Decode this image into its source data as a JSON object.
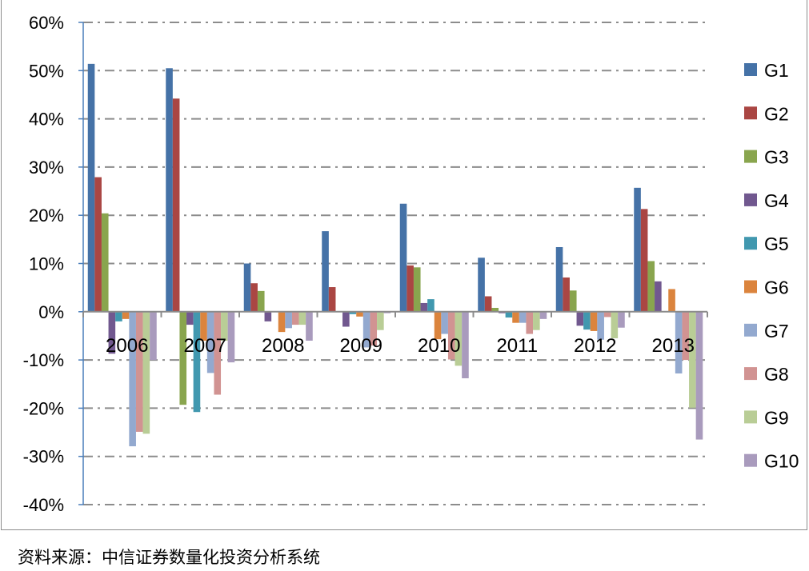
{
  "chart_data": {
    "type": "bar",
    "title": "",
    "xlabel": "",
    "ylabel": "",
    "ylim": [
      -40,
      60
    ],
    "yticks": [
      "-40%",
      "-30%",
      "-20%",
      "-10%",
      "0%",
      "10%",
      "20%",
      "30%",
      "40%",
      "50%",
      "60%"
    ],
    "grid": true,
    "legend_position": "right",
    "categories": [
      "2006",
      "2007",
      "2008",
      "2009",
      "2010",
      "2011",
      "2012",
      "2013"
    ],
    "series": [
      {
        "name": "G1",
        "color": "#4572a7",
        "values": [
          51.4,
          50.5,
          10.0,
          16.7,
          22.4,
          11.2,
          13.4,
          25.7
        ]
      },
      {
        "name": "G2",
        "color": "#aa4643",
        "values": [
          27.9,
          44.2,
          5.9,
          5.1,
          9.6,
          3.2,
          7.1,
          21.3
        ]
      },
      {
        "name": "G3",
        "color": "#89a54e",
        "values": [
          20.4,
          -19.3,
          4.3,
          0.0,
          9.2,
          0.8,
          4.4,
          10.5
        ]
      },
      {
        "name": "G4",
        "color": "#71588f",
        "values": [
          -8.7,
          -2.7,
          -2.0,
          -3.1,
          1.8,
          -0.3,
          -2.9,
          6.3
        ]
      },
      {
        "name": "G5",
        "color": "#4198af",
        "values": [
          -2.0,
          -20.8,
          0.0,
          -0.5,
          2.6,
          -1.2,
          -3.7,
          0.0
        ]
      },
      {
        "name": "G6",
        "color": "#db843d",
        "values": [
          -1.5,
          -6.0,
          -4.2,
          -1.0,
          -5.7,
          -2.3,
          -4.0,
          4.7
        ]
      },
      {
        "name": "G7",
        "color": "#93a9cf",
        "values": [
          -27.9,
          -12.7,
          -3.4,
          -7.4,
          -4.6,
          -2.3,
          -5.8,
          -12.8
        ]
      },
      {
        "name": "G8",
        "color": "#d19392",
        "values": [
          -24.9,
          -17.2,
          -2.7,
          -7.0,
          -9.9,
          -4.6,
          -1.1,
          -10.0
        ]
      },
      {
        "name": "G9",
        "color": "#b9cd96",
        "values": [
          -25.3,
          -6.0,
          -2.7,
          -3.8,
          -11.2,
          -3.8,
          -5.5,
          -19.9
        ]
      },
      {
        "name": "G10",
        "color": "#a99bbd",
        "values": [
          -10.0,
          -10.5,
          -6.0,
          -0.3,
          -13.8,
          -1.5,
          -3.3,
          -26.5
        ]
      }
    ]
  },
  "caption": "资料来源：中信证券数量化投资分析系统"
}
